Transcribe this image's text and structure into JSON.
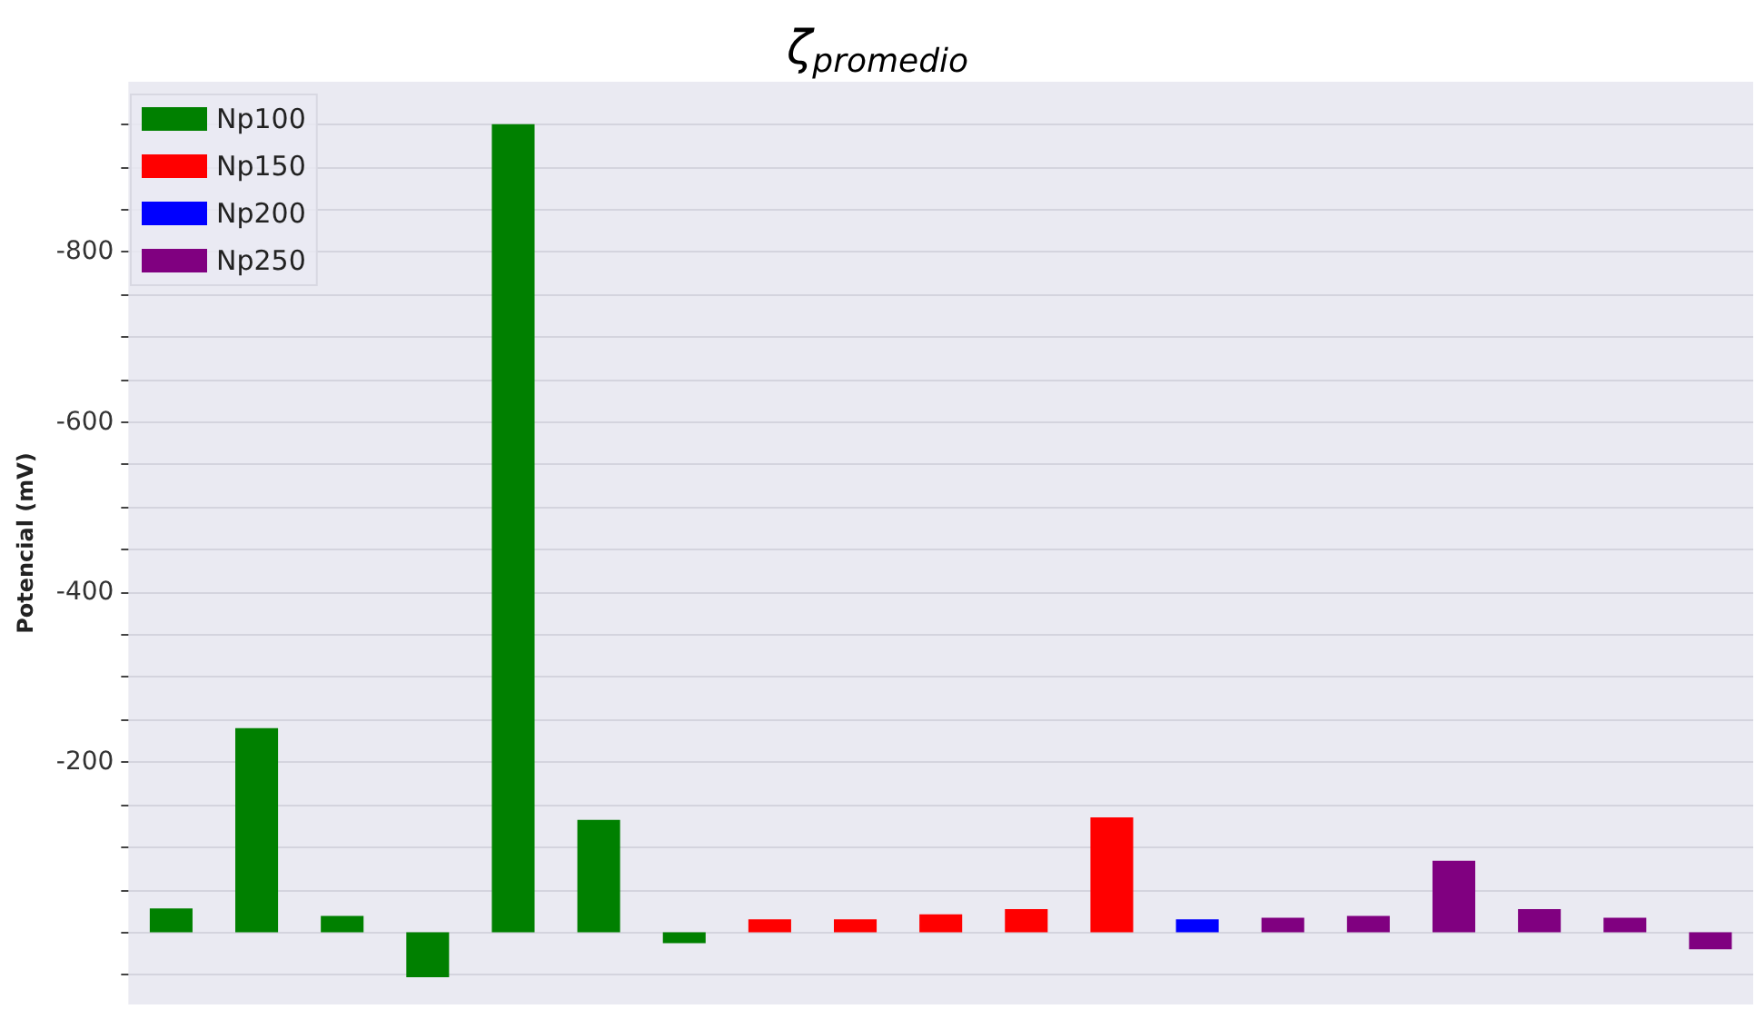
{
  "chart_data": {
    "type": "bar",
    "title": "ζ$_{promedio}$",
    "ylabel": "Potencial (mV)",
    "categories": [
      null,
      null,
      null,
      null,
      null,
      null,
      null,
      null,
      null,
      null,
      null,
      null,
      null,
      null,
      null,
      null,
      null,
      null,
      null
    ],
    "series": [
      {
        "name": "Np100",
        "color": "#008000",
        "values": [
          -28,
          -240,
          -19,
          53,
          -950,
          -132,
          13,
          null,
          null,
          null,
          null,
          null,
          null,
          null,
          null,
          null,
          null,
          null,
          null
        ]
      },
      {
        "name": "Np150",
        "color": "#ff0000",
        "values": [
          null,
          null,
          null,
          null,
          null,
          null,
          null,
          -15,
          -15,
          -21,
          -27,
          -135,
          null,
          null,
          null,
          null,
          null,
          null,
          null
        ]
      },
      {
        "name": "Np200",
        "color": "#0000ff",
        "values": [
          null,
          null,
          null,
          null,
          null,
          null,
          null,
          null,
          null,
          null,
          null,
          null,
          -15,
          null,
          null,
          null,
          null,
          null,
          null
        ]
      },
      {
        "name": "Np250",
        "color": "#800080",
        "values": [
          null,
          null,
          null,
          null,
          null,
          null,
          null,
          null,
          null,
          null,
          null,
          null,
          null,
          -17,
          -19,
          -84,
          -27,
          -17,
          20
        ]
      }
    ],
    "ylim": [
      85,
      -1000
    ],
    "yticks": [
      {
        "value": -950,
        "label": null
      },
      {
        "value": -900,
        "label": null
      },
      {
        "value": -850,
        "label": null
      },
      -800,
      {
        "value": -750,
        "label": null
      },
      {
        "value": -700,
        "label": null
      },
      {
        "value": -650,
        "label": null
      },
      -600,
      {
        "value": -550,
        "label": null
      },
      {
        "value": -500,
        "label": null
      },
      {
        "value": -450,
        "label": null
      },
      -400,
      {
        "value": -350,
        "label": null
      },
      {
        "value": -300,
        "label": null
      },
      {
        "value": -250,
        "label": null
      },
      -200,
      {
        "value": -150,
        "label": null
      },
      {
        "value": -100,
        "label": null
      },
      {
        "value": -50,
        "label": null
      },
      {
        "value": 0,
        "label": null
      },
      {
        "value": 50,
        "label": null
      }
    ],
    "grid": "y",
    "legend": "top left"
  }
}
